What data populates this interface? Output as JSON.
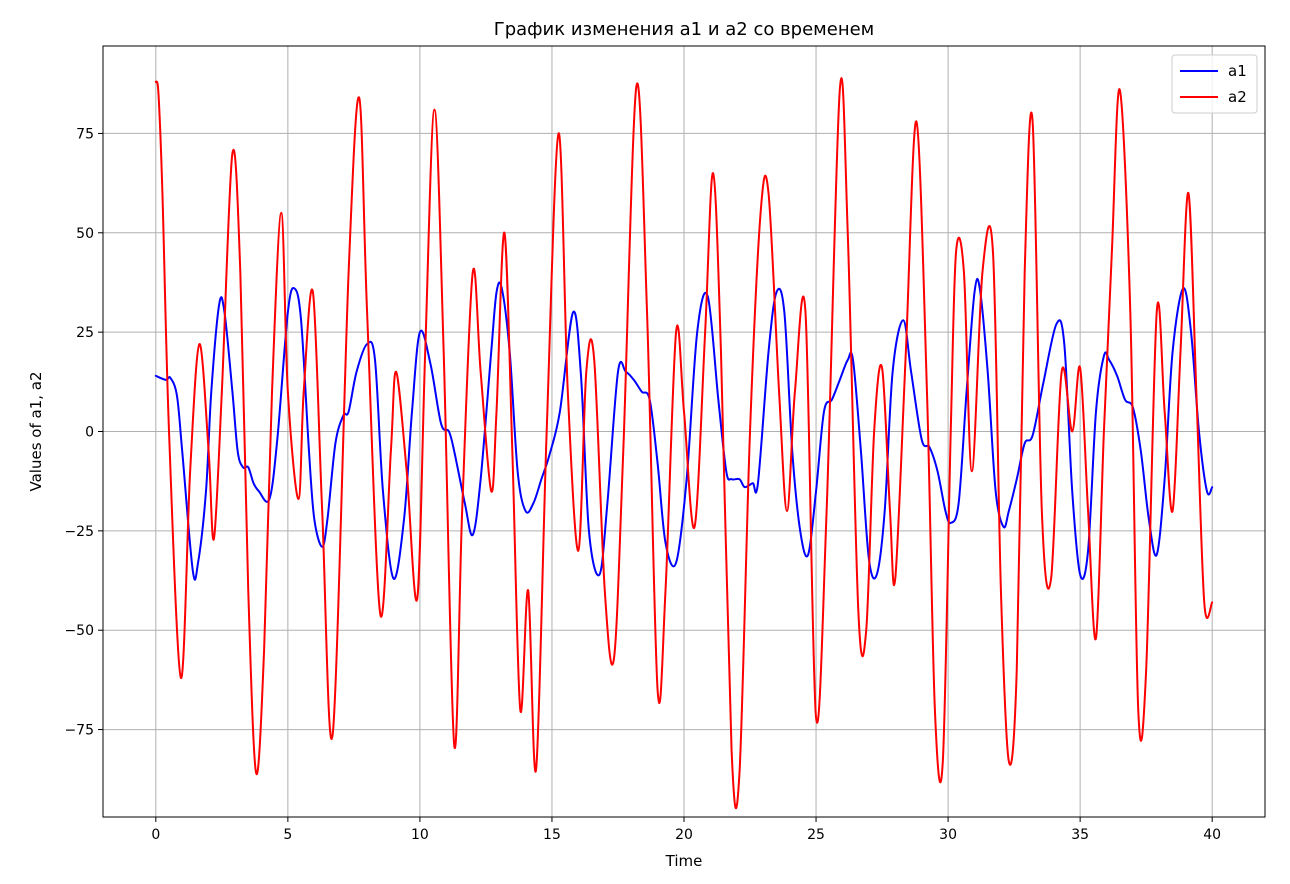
{
  "chart_data": {
    "type": "line",
    "title": "График изменения a1 и a2 со временем",
    "xlabel": "Time",
    "ylabel": "Values of a1, a2",
    "xlim": [
      -2,
      42
    ],
    "ylim": [
      -97,
      97
    ],
    "x_ticks": [
      0,
      5,
      10,
      15,
      20,
      25,
      30,
      35,
      40
    ],
    "x_tick_labels": [
      "0",
      "5",
      "10",
      "15",
      "20",
      "25",
      "30",
      "35",
      "40"
    ],
    "y_ticks": [
      -75,
      -50,
      -25,
      0,
      25,
      50,
      75
    ],
    "y_tick_labels": [
      "−75",
      "−50",
      "−25",
      "0",
      "25",
      "50",
      "75"
    ],
    "grid": true,
    "legend_position": "top-right",
    "series": [
      {
        "name": "a1",
        "color": "#0000ff",
        "x": [
          0.0,
          0.38,
          0.55,
          0.8,
          1.0,
          1.4,
          1.6,
          1.9,
          2.1,
          2.4,
          2.6,
          2.9,
          3.1,
          3.3,
          3.5,
          3.7,
          3.9,
          4.3,
          4.6,
          5.0,
          5.25,
          5.5,
          5.8,
          6.0,
          6.3,
          6.5,
          6.8,
          7.1,
          7.3,
          7.6,
          8.0,
          8.3,
          8.6,
          9.0,
          9.4,
          9.7,
          10.0,
          10.4,
          10.8,
          11.1,
          11.3,
          11.7,
          12.0,
          12.3,
          12.7,
          12.9,
          13.1,
          13.4,
          13.7,
          14.0,
          14.3,
          14.6,
          14.9,
          15.3,
          15.8,
          16.1,
          16.4,
          16.8,
          17.1,
          17.5,
          17.8,
          18.1,
          18.4,
          18.7,
          19.0,
          19.3,
          19.7,
          20.1,
          20.5,
          20.9,
          21.3,
          21.6,
          21.8,
          22.1,
          22.3,
          22.6,
          22.8,
          23.2,
          23.5,
          23.8,
          24.1,
          24.4,
          24.7,
          25.0,
          25.3,
          25.6,
          25.9,
          26.2,
          26.4,
          26.7,
          27.0,
          27.3,
          27.6,
          27.9,
          28.3,
          28.6,
          29.0,
          29.3,
          29.6,
          29.9,
          30.1,
          30.4,
          30.7,
          31.0,
          31.2,
          31.5,
          31.8,
          32.1,
          32.3,
          32.6,
          32.9,
          33.2,
          33.6,
          34.1,
          34.4,
          34.7,
          35.0,
          35.3,
          35.6,
          35.9,
          36.1,
          36.4,
          36.7,
          37.0,
          37.3,
          37.6,
          37.9,
          38.2,
          38.5,
          38.9,
          39.2,
          39.5,
          39.8,
          40.0
        ],
        "values": [
          14,
          13,
          13.5,
          9,
          -5,
          -35,
          -33,
          -15,
          10,
          32,
          30,
          10,
          -5,
          -9,
          -9,
          -13,
          -15,
          -17,
          -2,
          30,
          36,
          28,
          -5,
          -22,
          -29,
          -22,
          -3,
          4,
          5,
          15,
          22,
          18,
          -15,
          -37,
          -22,
          5,
          25,
          17,
          2,
          0,
          -5,
          -18,
          -26,
          -12,
          20,
          35,
          36,
          20,
          -10,
          -20,
          -18,
          -12,
          -6,
          5,
          30,
          14,
          -25,
          -36,
          -18,
          15,
          15,
          13,
          10,
          8,
          -8,
          -28,
          -33,
          -12,
          25,
          34,
          8,
          -10,
          -12,
          -12,
          -14,
          -13,
          -13,
          20,
          35,
          30,
          -5,
          -25,
          -31,
          -15,
          5,
          8,
          13,
          18,
          18,
          -5,
          -32,
          -36,
          -20,
          15,
          28,
          15,
          -2,
          -4,
          -10,
          -20,
          -23,
          -18,
          10,
          35,
          36,
          15,
          -15,
          -24,
          -20,
          -12,
          -3,
          -1,
          12,
          27,
          22,
          -15,
          -36,
          -30,
          5,
          19,
          18,
          14,
          8,
          6,
          -5,
          -22,
          -31,
          -12,
          20,
          36,
          25,
          0,
          -15,
          -14
        ],
        "description": "a1 line"
      },
      {
        "name": "a2",
        "color": "#ff0000",
        "x": [
          0.0,
          0.1,
          0.25,
          0.5,
          0.95,
          1.3,
          1.65,
          2.0,
          2.2,
          2.5,
          2.9,
          3.2,
          3.5,
          3.8,
          4.1,
          4.4,
          4.75,
          5.0,
          5.4,
          5.6,
          5.95,
          6.3,
          6.7,
          7.3,
          7.7,
          8.0,
          8.5,
          8.9,
          9.1,
          9.5,
          9.9,
          10.2,
          10.55,
          10.9,
          11.3,
          11.6,
          12.0,
          12.3,
          12.7,
          12.9,
          13.2,
          13.5,
          13.8,
          14.1,
          14.4,
          14.8,
          15.25,
          15.6,
          16.0,
          16.3,
          16.6,
          17.0,
          17.35,
          17.7,
          18.2,
          18.6,
          19.0,
          19.3,
          19.7,
          20.0,
          20.4,
          20.8,
          21.1,
          21.4,
          21.8,
          22.1,
          22.5,
          22.9,
          23.2,
          23.6,
          23.9,
          24.2,
          24.6,
          25.0,
          25.4,
          25.9,
          26.2,
          26.6,
          26.9,
          27.2,
          27.5,
          27.8,
          28.0,
          28.4,
          28.8,
          29.2,
          29.5,
          29.8,
          30.1,
          30.3,
          30.6,
          30.9,
          31.3,
          31.7,
          32.0,
          32.3,
          32.6,
          32.9,
          33.2,
          33.55,
          33.9,
          34.3,
          34.7,
          35.0,
          35.3,
          35.6,
          35.9,
          36.2,
          36.5,
          36.9,
          37.2,
          37.5,
          37.9,
          38.2,
          38.5,
          38.8,
          39.1,
          39.4,
          39.7,
          40.0
        ],
        "values": [
          88,
          85,
          60,
          0,
          -62,
          -10,
          22,
          -5,
          -27,
          10,
          70,
          40,
          -40,
          -86,
          -55,
          10,
          55,
          10,
          -17,
          10,
          35,
          -20,
          -76,
          40,
          84,
          30,
          -46,
          -5,
          15,
          -10,
          -42,
          20,
          81,
          20,
          -79,
          -20,
          40,
          15,
          -15,
          5,
          50,
          -5,
          -70,
          -40,
          -85,
          0,
          75,
          10,
          -30,
          15,
          18,
          -40,
          -57,
          -5,
          87,
          30,
          -65,
          -40,
          25,
          5,
          -24,
          25,
          65,
          20,
          -80,
          -86,
          0,
          55,
          60,
          10,
          -20,
          10,
          30,
          -72,
          -20,
          86,
          50,
          -45,
          -50,
          0,
          16,
          -20,
          -37,
          20,
          78,
          10,
          -70,
          -83,
          0,
          45,
          40,
          -10,
          40,
          45,
          -40,
          -83,
          -60,
          40,
          78,
          -20,
          -37,
          15,
          0,
          16,
          -20,
          -52,
          0,
          45,
          86,
          30,
          -70,
          -60,
          30,
          5,
          -20,
          20,
          60,
          10,
          -43,
          -43
        ],
        "description": "a2 line"
      }
    ]
  }
}
